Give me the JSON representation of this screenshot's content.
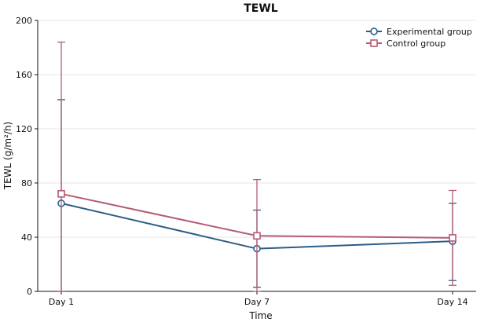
{
  "chart_data": {
    "type": "line",
    "title": "TEWL",
    "xlabel": "Time",
    "ylabel": "TEWL (g/m²/h)",
    "categories": [
      "Day 1",
      "Day 7",
      "Day 14"
    ],
    "ylim": [
      0,
      200
    ],
    "yticks": [
      0,
      40,
      80,
      120,
      160,
      200
    ],
    "grid": "horizontal",
    "legend_position": "top-right",
    "series": [
      {
        "name": "Experimental group",
        "color": "#2c5d87",
        "marker": "circle",
        "values": [
          65,
          31.5,
          37
        ],
        "err_low": [
          0,
          3,
          8
        ],
        "err_high": [
          141.5,
          60,
          65
        ]
      },
      {
        "name": "Control group",
        "color": "#b55d73",
        "marker": "square",
        "values": [
          72,
          41,
          39.5
        ],
        "err_low": [
          0,
          0,
          4.5
        ],
        "err_high": [
          184,
          82.5,
          74.5
        ]
      }
    ]
  }
}
